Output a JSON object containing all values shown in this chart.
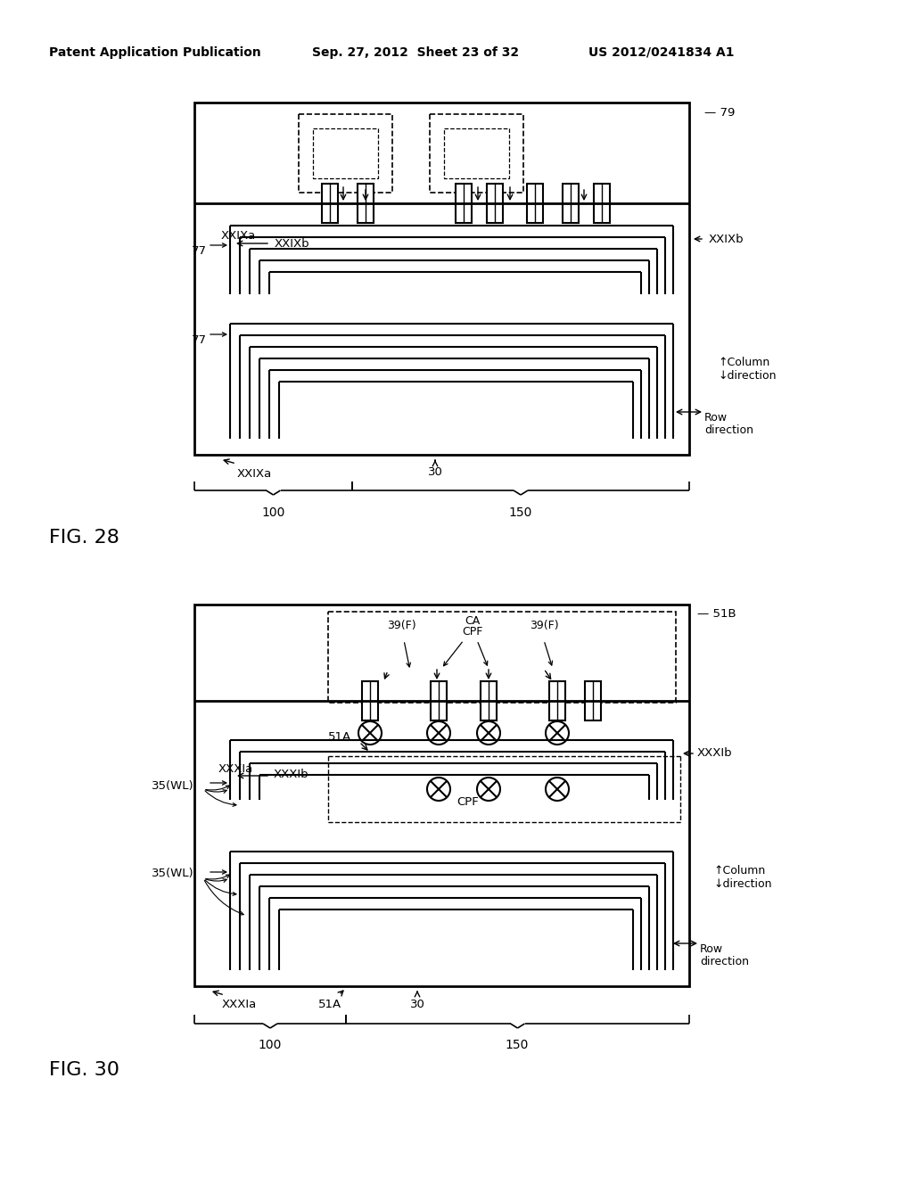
{
  "bg_color": "#ffffff",
  "header_text": "Patent Application Publication",
  "header_date": "Sep. 27, 2012  Sheet 23 of 32",
  "header_patent": "US 2012/0241834 A1",
  "fig28_label": "FIG. 28",
  "fig30_label": "FIG. 30"
}
